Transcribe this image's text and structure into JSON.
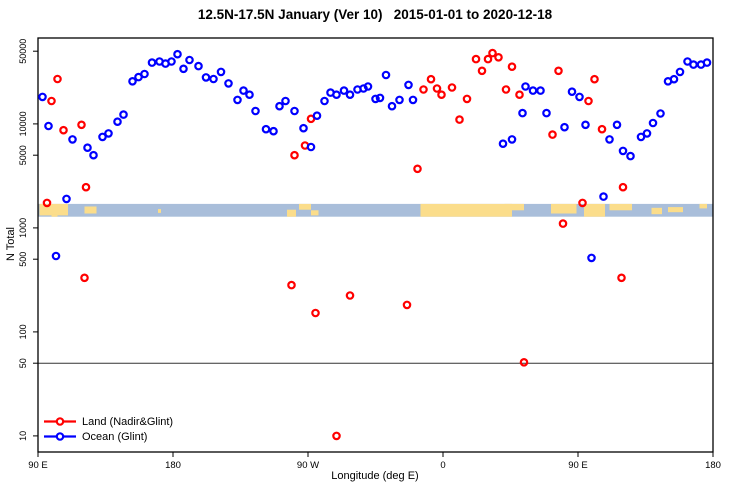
{
  "chart_data": {
    "type": "scatter",
    "title": "12.5N-17.5N January (Ver 10)   2015-01-01 to 2020-12-18",
    "xlabel": "Longitude (deg E)",
    "ylabel": "N Total",
    "x_axis": {
      "min": 90,
      "max": 540,
      "ticks": [
        {
          "value": 90,
          "label": "90 E"
        },
        {
          "value": 180,
          "label": "180"
        },
        {
          "value": 270,
          "label": "90 W"
        },
        {
          "value": 360,
          "label": "0"
        },
        {
          "value": 450,
          "label": "90 E"
        },
        {
          "value": 540,
          "label": "180"
        }
      ]
    },
    "y_axis": {
      "scale": "log",
      "min": 7,
      "max": 67000,
      "ticks": [
        {
          "value": 10,
          "label": "10"
        },
        {
          "value": 50,
          "label": "50"
        },
        {
          "value": 100,
          "label": "100"
        },
        {
          "value": 500,
          "label": "500"
        },
        {
          "value": 1000,
          "label": "1000"
        },
        {
          "value": 5000,
          "label": "5000"
        },
        {
          "value": 10000,
          "label": "10000"
        },
        {
          "value": 50000,
          "label": "50000"
        }
      ]
    },
    "reference_line_y": 50,
    "map_strip": {
      "top_value": 1700,
      "bottom_value": 1280,
      "ocean_color": "#a9beda",
      "land_color": "#fbdd8b",
      "land_segments": [
        [
          91,
          110,
          0,
          0.9
        ],
        [
          99,
          103,
          0.85,
          1.0
        ],
        [
          121,
          129,
          0.2,
          0.75
        ],
        [
          170,
          172,
          0.4,
          0.7
        ],
        [
          256,
          262,
          0.45,
          1.0
        ],
        [
          264,
          272,
          0,
          0.45
        ],
        [
          272,
          277,
          0.5,
          0.9
        ],
        [
          345,
          406,
          0,
          1.0
        ],
        [
          401,
          414,
          0,
          0.5
        ],
        [
          432,
          449,
          0,
          0.75
        ],
        [
          454,
          468,
          0,
          1.0
        ],
        [
          471,
          486,
          0,
          0.5
        ],
        [
          499,
          506,
          0.3,
          0.8
        ],
        [
          510,
          520,
          0.25,
          0.65
        ],
        [
          531,
          536,
          0,
          0.35
        ]
      ]
    },
    "series": [
      {
        "name": "Land (Nadir&Glint)",
        "color": "#ff0000",
        "points": [
          [
            96,
            1740
          ],
          [
            99,
            16600
          ],
          [
            103,
            27000
          ],
          [
            107,
            8700
          ],
          [
            119,
            9800
          ],
          [
            121,
            331
          ],
          [
            122,
            2460
          ],
          [
            259,
            282
          ],
          [
            261,
            5000
          ],
          [
            268,
            6200
          ],
          [
            272,
            11200
          ],
          [
            275,
            152
          ],
          [
            289,
            10
          ],
          [
            298,
            224
          ],
          [
            336,
            182
          ],
          [
            343,
            3700
          ],
          [
            347,
            21400
          ],
          [
            352,
            26900
          ],
          [
            356,
            21900
          ],
          [
            359,
            19100
          ],
          [
            366,
            22400
          ],
          [
            371,
            11000
          ],
          [
            376,
            17400
          ],
          [
            382,
            42000
          ],
          [
            386,
            32400
          ],
          [
            390,
            42000
          ],
          [
            393,
            48000
          ],
          [
            397,
            43700
          ],
          [
            402,
            21400
          ],
          [
            406,
            35500
          ],
          [
            411,
            19100
          ],
          [
            414,
            51
          ],
          [
            433,
            7900
          ],
          [
            437,
            32400
          ],
          [
            440,
            1100
          ],
          [
            453,
            1740
          ],
          [
            457,
            16600
          ],
          [
            461,
            26900
          ],
          [
            466,
            8900
          ],
          [
            479,
            331
          ],
          [
            480,
            2460
          ]
        ]
      },
      {
        "name": "Ocean (Glint)",
        "color": "#0000ff",
        "points": [
          [
            93,
            18200
          ],
          [
            97,
            9550
          ],
          [
            102,
            537
          ],
          [
            109,
            1900
          ],
          [
            113,
            7100
          ],
          [
            123,
            5900
          ],
          [
            127,
            5000
          ],
          [
            133,
            7500
          ],
          [
            137,
            8100
          ],
          [
            143,
            10500
          ],
          [
            147,
            12300
          ],
          [
            153,
            25700
          ],
          [
            157,
            28200
          ],
          [
            161,
            30200
          ],
          [
            166,
            38900
          ],
          [
            171,
            39800
          ],
          [
            175,
            38000
          ],
          [
            179,
            39800
          ],
          [
            183,
            46800
          ],
          [
            187,
            33900
          ],
          [
            191,
            41200
          ],
          [
            197,
            36000
          ],
          [
            202,
            28000
          ],
          [
            207,
            27000
          ],
          [
            212,
            31600
          ],
          [
            217,
            24500
          ],
          [
            223,
            17000
          ],
          [
            227,
            20900
          ],
          [
            231,
            19100
          ],
          [
            235,
            13300
          ],
          [
            242,
            8900
          ],
          [
            247,
            8500
          ],
          [
            251,
            14800
          ],
          [
            255,
            16600
          ],
          [
            261,
            13300
          ],
          [
            267,
            9100
          ],
          [
            272,
            6000
          ],
          [
            276,
            12000
          ],
          [
            281,
            16600
          ],
          [
            285,
            20000
          ],
          [
            289,
            19100
          ],
          [
            294,
            20900
          ],
          [
            298,
            19100
          ],
          [
            303,
            21400
          ],
          [
            307,
            21900
          ],
          [
            310,
            22900
          ],
          [
            315,
            17400
          ],
          [
            318,
            17800
          ],
          [
            322,
            29500
          ],
          [
            326,
            14800
          ],
          [
            331,
            17000
          ],
          [
            337,
            23700
          ],
          [
            340,
            17000
          ],
          [
            400,
            6450
          ],
          [
            406,
            7100
          ],
          [
            413,
            12700
          ],
          [
            415,
            22900
          ],
          [
            420,
            20900
          ],
          [
            425,
            20900
          ],
          [
            429,
            12700
          ],
          [
            441,
            9300
          ],
          [
            446,
            20400
          ],
          [
            451,
            18200
          ],
          [
            455,
            9800
          ],
          [
            459,
            515
          ],
          [
            467,
            2000
          ],
          [
            471,
            7100
          ],
          [
            476,
            9800
          ],
          [
            480,
            5500
          ],
          [
            485,
            4900
          ],
          [
            492,
            7500
          ],
          [
            496,
            8100
          ],
          [
            500,
            10200
          ],
          [
            505,
            12600
          ],
          [
            510,
            25700
          ],
          [
            514,
            26900
          ],
          [
            518,
            31600
          ],
          [
            523,
            39800
          ],
          [
            527,
            37200
          ],
          [
            532,
            37200
          ],
          [
            536,
            38900
          ]
        ]
      }
    ]
  }
}
